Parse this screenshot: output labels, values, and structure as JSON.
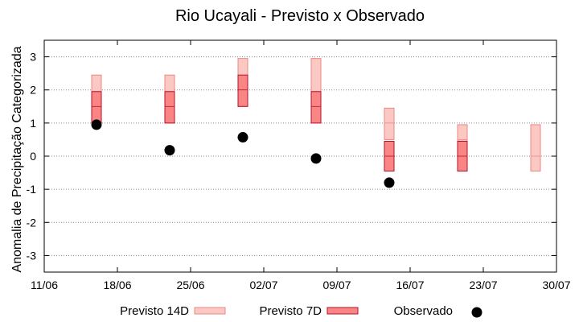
{
  "chart_data": {
    "type": "floating-bar-with-points",
    "title": "Rio Ucayali - Previsto x Observado",
    "xlabel": "",
    "ylabel": "Anomalia de Precipitação Categorizada",
    "xlim": [
      "11/06",
      "30/07"
    ],
    "ylim": [
      -3.5,
      3.5
    ],
    "x_ticks": [
      "11/06",
      "18/06",
      "25/06",
      "02/07",
      "09/07",
      "16/07",
      "23/07",
      "30/07"
    ],
    "y_ticks": [
      -3,
      -2,
      -1,
      0,
      1,
      2,
      3
    ],
    "grid": true,
    "legend_position": "bottom",
    "colors": {
      "p14_fill": "#fbc8c4",
      "p14_stroke": "#e88a84",
      "p7_fill": "#f98684",
      "p7_stroke": "#b8102a",
      "obs": "#000000"
    },
    "series": [
      {
        "name": "Previsto 14D",
        "bars": [
          {
            "x": "16/06",
            "low": 1.0,
            "mid": 1.5,
            "high": 2.45
          },
          {
            "x": "23/06",
            "low": 1.0,
            "mid": 1.5,
            "high": 2.45
          },
          {
            "x": "30/06",
            "low": 1.5,
            "mid": 2.0,
            "high": 2.95
          },
          {
            "x": "07/07",
            "low": 1.0,
            "mid": 1.5,
            "high": 2.95
          },
          {
            "x": "14/07",
            "low": 0.5,
            "mid": 1.0,
            "high": 1.45
          },
          {
            "x": "21/07",
            "low": 0.0,
            "mid": 0.5,
            "high": 0.95
          },
          {
            "x": "28/07",
            "low": -0.45,
            "mid": 0.0,
            "high": 0.95
          }
        ]
      },
      {
        "name": "Previsto 7D",
        "bars": [
          {
            "x": "16/06",
            "low": 1.0,
            "mid": 1.5,
            "high": 1.95
          },
          {
            "x": "23/06",
            "low": 1.0,
            "mid": 1.5,
            "high": 1.95
          },
          {
            "x": "30/06",
            "low": 1.5,
            "mid": 2.0,
            "high": 2.45
          },
          {
            "x": "07/07",
            "low": 1.0,
            "mid": 1.5,
            "high": 1.95
          },
          {
            "x": "14/07",
            "low": -0.45,
            "mid": 0.0,
            "high": 0.45
          },
          {
            "x": "21/07",
            "low": -0.45,
            "mid": 0.0,
            "high": 0.45
          }
        ]
      },
      {
        "name": "Observado",
        "points": [
          {
            "x": "16/06",
            "y": 0.95
          },
          {
            "x": "23/06",
            "y": 0.18
          },
          {
            "x": "30/06",
            "y": 0.57
          },
          {
            "x": "07/07",
            "y": -0.07
          },
          {
            "x": "14/07",
            "y": -0.8
          }
        ]
      }
    ]
  }
}
